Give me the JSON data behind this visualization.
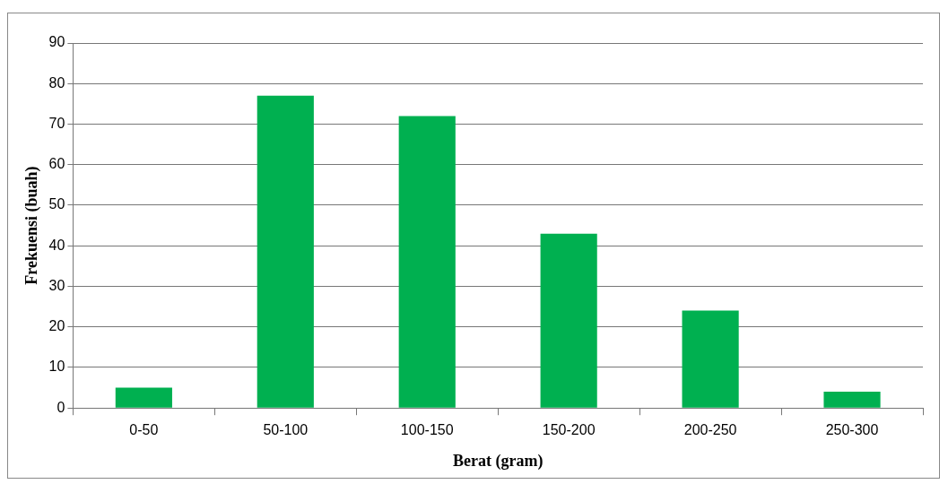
{
  "chart_data": {
    "type": "bar",
    "xlabel": "Berat (gram)",
    "ylabel": "Frekuensi (buah)",
    "categories": [
      "0-50",
      "50-100",
      "100-150",
      "150-200",
      "200-250",
      "250-300"
    ],
    "values": [
      5,
      77,
      72,
      43,
      24,
      4
    ],
    "color": "#00b050",
    "ylim": [
      0,
      90
    ],
    "yticks": [
      0,
      10,
      20,
      30,
      40,
      50,
      60,
      70,
      80,
      90
    ],
    "grid": "y"
  }
}
